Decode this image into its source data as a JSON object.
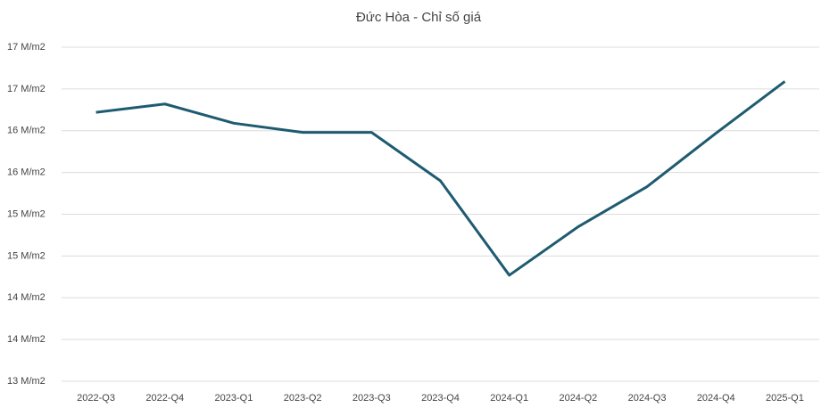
{
  "chart_data": {
    "type": "line",
    "title": "Đức Hòa - Chỉ số giá",
    "categories": [
      "2022-Q3",
      "2022-Q4",
      "2023-Q1",
      "2023-Q2",
      "2023-Q3",
      "2023-Q4",
      "2024-Q1",
      "2024-Q2",
      "2024-Q3",
      "2024-Q4",
      "2025-Q1"
    ],
    "series": [
      {
        "name": "Chỉ số giá",
        "color": "#1e5b70",
        "values": [
          16.22,
          16.32,
          16.09,
          15.98,
          15.98,
          15.4,
          14.27,
          14.85,
          15.33,
          15.97,
          16.59
        ]
      }
    ],
    "ylim": [
      13,
      17
    ],
    "yticks": [
      {
        "value": 13,
        "label": "13 M/m2"
      },
      {
        "value": 13.5,
        "label": "14 M/m2"
      },
      {
        "value": 14,
        "label": "14 M/m2"
      },
      {
        "value": 14.5,
        "label": "15 M/m2"
      },
      {
        "value": 15,
        "label": "15 M/m2"
      },
      {
        "value": 15.5,
        "label": "16 M/m2"
      },
      {
        "value": 16,
        "label": "16 M/m2"
      },
      {
        "value": 16.5,
        "label": "17 M/m2"
      },
      {
        "value": 17,
        "label": "17 M/m2"
      }
    ],
    "grid": true
  }
}
